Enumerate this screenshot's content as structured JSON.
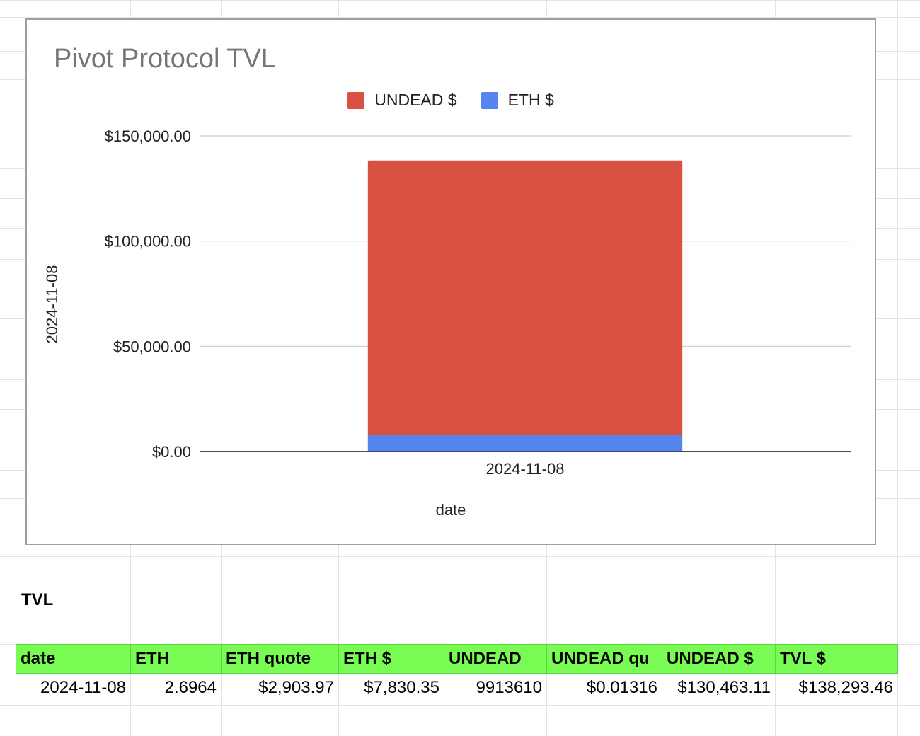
{
  "chart_data": {
    "type": "bar",
    "stacked": true,
    "title": "Pivot Protocol TVL",
    "xlabel": "date",
    "ylabel": "2024-11-08",
    "categories": [
      "2024-11-08"
    ],
    "series": [
      {
        "name": "ETH $",
        "values": [
          7830.35
        ],
        "color": "#5586f0"
      },
      {
        "name": "UNDEAD $",
        "values": [
          130463.11
        ],
        "color": "#d95140"
      }
    ],
    "legend_order": [
      "UNDEAD $",
      "ETH $"
    ],
    "ylim": [
      0,
      150000
    ],
    "yticks": [
      0,
      50000,
      100000,
      150000
    ],
    "ytick_labels": [
      "$0.00",
      "$50,000.00",
      "$100,000.00",
      "$150,000.00"
    ],
    "legend_position": "top",
    "grid": true
  },
  "section_title": "TVL",
  "table": {
    "headers": [
      "date",
      "ETH",
      "ETH quote",
      "ETH $",
      "UNDEAD",
      "UNDEAD qu",
      "UNDEAD $",
      "TVL $"
    ],
    "rows": [
      [
        "2024-11-08",
        "2.6964",
        "$2,903.97",
        "$7,830.35",
        "9913610",
        "$0.01316",
        "$130,463.11",
        "$138,293.46"
      ]
    ]
  }
}
